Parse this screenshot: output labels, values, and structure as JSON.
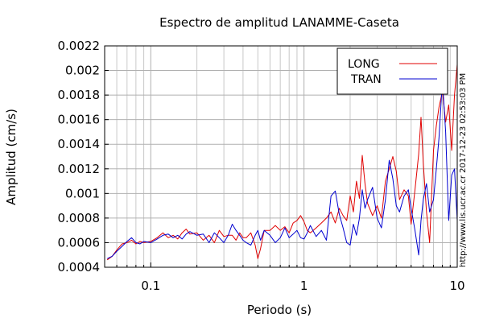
{
  "chart_data": {
    "type": "line",
    "title": "Espectro de amplitud LANAMME-Caseta",
    "xlabel": "Periodo (s)",
    "ylabel": "Amplitud (cm/s)",
    "xscale": "log",
    "xlim": [
      0.05,
      10
    ],
    "ylim": [
      0.0004,
      0.0022
    ],
    "grid": true,
    "legend_position": "top-right",
    "x_tick_labels": [
      {
        "value": 0.1,
        "label": "0.1"
      },
      {
        "value": 1,
        "label": "1"
      },
      {
        "value": 10,
        "label": "10"
      }
    ],
    "y_tick_labels": [
      {
        "value": 0.0004,
        "label": "0.0004"
      },
      {
        "value": 0.0006,
        "label": "0.0006"
      },
      {
        "value": 0.0008,
        "label": "0.0008"
      },
      {
        "value": 0.001,
        "label": "0.001"
      },
      {
        "value": 0.0012,
        "label": "0.0012"
      },
      {
        "value": 0.0014,
        "label": "0.0014"
      },
      {
        "value": 0.0016,
        "label": "0.0016"
      },
      {
        "value": 0.0018,
        "label": "0.0018"
      },
      {
        "value": 0.002,
        "label": "0.002"
      },
      {
        "value": 0.0022,
        "label": "0.0022"
      }
    ],
    "series": [
      {
        "name": "LONG",
        "color": "#e00000",
        "points": [
          [
            0.052,
            0.00046
          ],
          [
            0.056,
            0.00049
          ],
          [
            0.06,
            0.00054
          ],
          [
            0.065,
            0.00059
          ],
          [
            0.07,
            0.0006
          ],
          [
            0.075,
            0.00062
          ],
          [
            0.08,
            0.00059
          ],
          [
            0.085,
            0.00061
          ],
          [
            0.09,
            0.0006
          ],
          [
            0.1,
            0.00061
          ],
          [
            0.11,
            0.00064
          ],
          [
            0.12,
            0.00068
          ],
          [
            0.13,
            0.00064
          ],
          [
            0.14,
            0.00066
          ],
          [
            0.15,
            0.00063
          ],
          [
            0.16,
            0.00068
          ],
          [
            0.17,
            0.00071
          ],
          [
            0.18,
            0.00067
          ],
          [
            0.2,
            0.00068
          ],
          [
            0.22,
            0.00062
          ],
          [
            0.24,
            0.00066
          ],
          [
            0.26,
            0.0006
          ],
          [
            0.28,
            0.0007
          ],
          [
            0.3,
            0.00065
          ],
          [
            0.32,
            0.00066
          ],
          [
            0.34,
            0.00066
          ],
          [
            0.36,
            0.00062
          ],
          [
            0.38,
            0.00068
          ],
          [
            0.4,
            0.00064
          ],
          [
            0.42,
            0.00064
          ],
          [
            0.45,
            0.00068
          ],
          [
            0.48,
            0.00058
          ],
          [
            0.5,
            0.00047
          ],
          [
            0.52,
            0.00055
          ],
          [
            0.55,
            0.0007
          ],
          [
            0.6,
            0.0007
          ],
          [
            0.65,
            0.00074
          ],
          [
            0.7,
            0.0007
          ],
          [
            0.75,
            0.00073
          ],
          [
            0.8,
            0.00068
          ],
          [
            0.85,
            0.00076
          ],
          [
            0.9,
            0.00078
          ],
          [
            0.95,
            0.00082
          ],
          [
            1.0,
            0.00077
          ],
          [
            1.05,
            0.0007
          ],
          [
            1.1,
            0.00068
          ],
          [
            1.2,
            0.00072
          ],
          [
            1.3,
            0.00076
          ],
          [
            1.4,
            0.0008
          ],
          [
            1.5,
            0.00085
          ],
          [
            1.6,
            0.00076
          ],
          [
            1.7,
            0.00088
          ],
          [
            1.8,
            0.00082
          ],
          [
            1.9,
            0.00078
          ],
          [
            2.0,
            0.00098
          ],
          [
            2.1,
            0.00085
          ],
          [
            2.2,
            0.0011
          ],
          [
            2.3,
            0.00096
          ],
          [
            2.4,
            0.00131
          ],
          [
            2.5,
            0.00108
          ],
          [
            2.6,
            0.00092
          ],
          [
            2.8,
            0.00082
          ],
          [
            3.0,
            0.0009
          ],
          [
            3.2,
            0.0008
          ],
          [
            3.4,
            0.0011
          ],
          [
            3.6,
            0.0012
          ],
          [
            3.8,
            0.0013
          ],
          [
            4.0,
            0.00118
          ],
          [
            4.2,
            0.00095
          ],
          [
            4.5,
            0.00103
          ],
          [
            4.8,
            0.00098
          ],
          [
            5.0,
            0.00075
          ],
          [
            5.3,
            0.00103
          ],
          [
            5.6,
            0.00132
          ],
          [
            5.8,
            0.00162
          ],
          [
            6.0,
            0.00125
          ],
          [
            6.3,
            0.00085
          ],
          [
            6.6,
            0.0006
          ],
          [
            7.0,
            0.00135
          ],
          [
            7.3,
            0.00155
          ],
          [
            7.6,
            0.0017
          ],
          [
            8.0,
            0.00183
          ],
          [
            8.4,
            0.00158
          ],
          [
            8.8,
            0.00172
          ],
          [
            9.2,
            0.00135
          ],
          [
            9.6,
            0.0018
          ],
          [
            10.0,
            0.00205
          ]
        ]
      },
      {
        "name": "TRAN",
        "color": "#0000d0",
        "points": [
          [
            0.052,
            0.00047
          ],
          [
            0.056,
            0.00049
          ],
          [
            0.06,
            0.00053
          ],
          [
            0.065,
            0.00057
          ],
          [
            0.07,
            0.00061
          ],
          [
            0.075,
            0.00064
          ],
          [
            0.08,
            0.0006
          ],
          [
            0.085,
            0.00059
          ],
          [
            0.09,
            0.00061
          ],
          [
            0.1,
            0.0006
          ],
          [
            0.11,
            0.00063
          ],
          [
            0.12,
            0.00066
          ],
          [
            0.13,
            0.00067
          ],
          [
            0.14,
            0.00064
          ],
          [
            0.15,
            0.00066
          ],
          [
            0.16,
            0.00063
          ],
          [
            0.17,
            0.00067
          ],
          [
            0.18,
            0.00069
          ],
          [
            0.2,
            0.00066
          ],
          [
            0.22,
            0.00067
          ],
          [
            0.24,
            0.0006
          ],
          [
            0.26,
            0.00068
          ],
          [
            0.28,
            0.00064
          ],
          [
            0.3,
            0.0006
          ],
          [
            0.32,
            0.00066
          ],
          [
            0.34,
            0.00075
          ],
          [
            0.36,
            0.0007
          ],
          [
            0.38,
            0.00066
          ],
          [
            0.4,
            0.00062
          ],
          [
            0.42,
            0.0006
          ],
          [
            0.45,
            0.00058
          ],
          [
            0.48,
            0.00066
          ],
          [
            0.5,
            0.0007
          ],
          [
            0.52,
            0.00062
          ],
          [
            0.55,
            0.0007
          ],
          [
            0.6,
            0.00066
          ],
          [
            0.65,
            0.0006
          ],
          [
            0.7,
            0.00064
          ],
          [
            0.75,
            0.00072
          ],
          [
            0.8,
            0.00064
          ],
          [
            0.85,
            0.00067
          ],
          [
            0.9,
            0.0007
          ],
          [
            0.95,
            0.00064
          ],
          [
            1.0,
            0.00063
          ],
          [
            1.05,
            0.00068
          ],
          [
            1.1,
            0.00074
          ],
          [
            1.2,
            0.00065
          ],
          [
            1.3,
            0.0007
          ],
          [
            1.4,
            0.00062
          ],
          [
            1.5,
            0.00098
          ],
          [
            1.6,
            0.00102
          ],
          [
            1.7,
            0.00083
          ],
          [
            1.8,
            0.00072
          ],
          [
            1.9,
            0.0006
          ],
          [
            2.0,
            0.00058
          ],
          [
            2.1,
            0.00075
          ],
          [
            2.2,
            0.00066
          ],
          [
            2.3,
            0.0008
          ],
          [
            2.4,
            0.00103
          ],
          [
            2.5,
            0.00088
          ],
          [
            2.6,
            0.00095
          ],
          [
            2.8,
            0.00105
          ],
          [
            3.0,
            0.0008
          ],
          [
            3.2,
            0.00072
          ],
          [
            3.4,
            0.00095
          ],
          [
            3.6,
            0.00127
          ],
          [
            3.8,
            0.00112
          ],
          [
            4.0,
            0.0009
          ],
          [
            4.2,
            0.00085
          ],
          [
            4.5,
            0.00098
          ],
          [
            4.8,
            0.00103
          ],
          [
            5.0,
            0.00088
          ],
          [
            5.3,
            0.0007
          ],
          [
            5.6,
            0.0005
          ],
          [
            5.8,
            0.00078
          ],
          [
            6.0,
            0.00095
          ],
          [
            6.3,
            0.00108
          ],
          [
            6.6,
            0.00085
          ],
          [
            7.0,
            0.00095
          ],
          [
            7.3,
            0.0012
          ],
          [
            7.6,
            0.00145
          ],
          [
            8.0,
            0.00192
          ],
          [
            8.4,
            0.0015
          ],
          [
            8.8,
            0.00078
          ],
          [
            9.2,
            0.00115
          ],
          [
            9.6,
            0.0012
          ],
          [
            10.0,
            0.00078
          ]
        ]
      }
    ]
  },
  "side_text": "http://www.lis.ucr.ac.cr  2017-12-23 02:53:03 PM"
}
